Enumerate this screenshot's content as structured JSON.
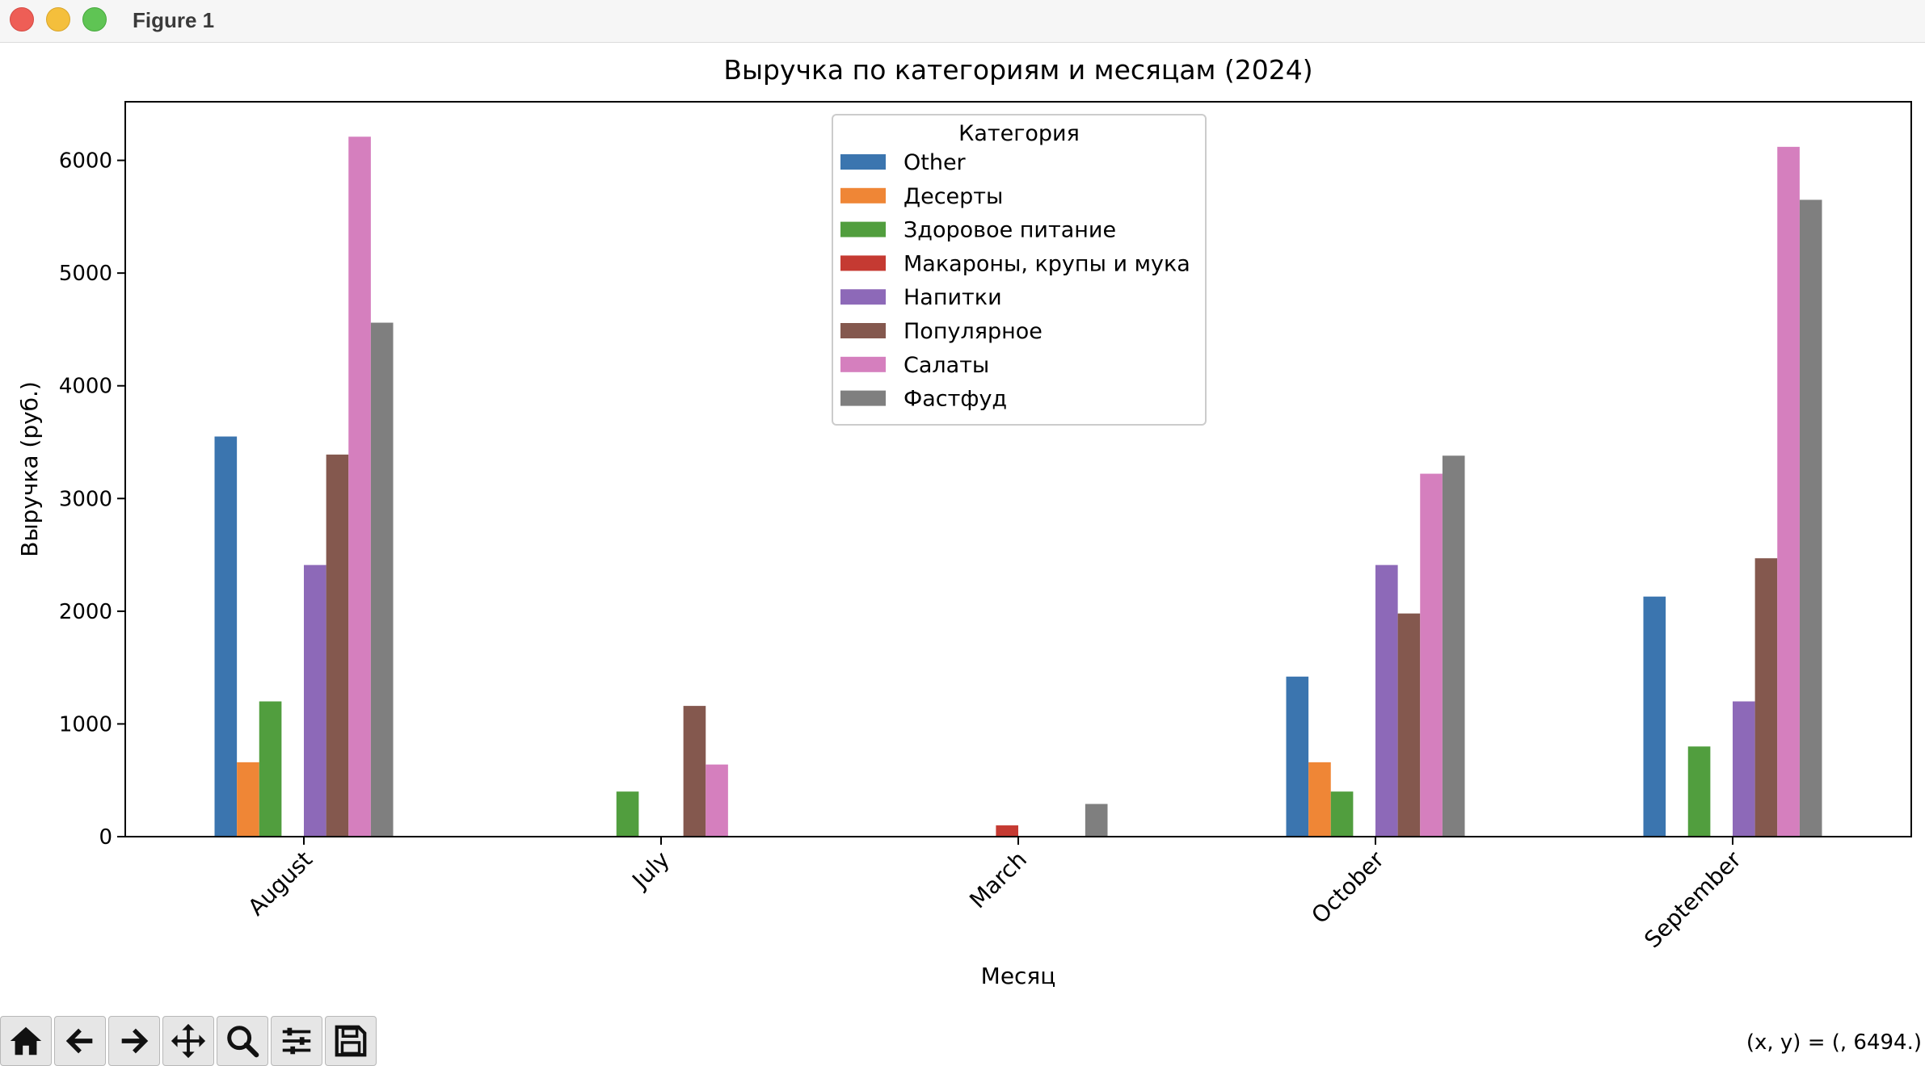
{
  "window": {
    "title": "Figure 1",
    "buttons": [
      "close",
      "minimize",
      "maximize"
    ]
  },
  "toolbar": {
    "buttons": [
      {
        "name": "home-icon",
        "label": "Home"
      },
      {
        "name": "back-arrow-icon",
        "label": "Back"
      },
      {
        "name": "forward-arrow-icon",
        "label": "Forward"
      },
      {
        "name": "pan-icon",
        "label": "Pan"
      },
      {
        "name": "zoom-icon",
        "label": "Zoom"
      },
      {
        "name": "configure-subplots-icon",
        "label": "Configure subplots"
      },
      {
        "name": "save-icon",
        "label": "Save"
      }
    ],
    "coords": "(x, y) = (, 6494.)"
  },
  "chart_data": {
    "type": "bar",
    "title": "Выручка по категориям и месяцам (2024)",
    "xlabel": "Месяц",
    "ylabel": "Выручка (руб.)",
    "categories": [
      "August",
      "July",
      "March",
      "October",
      "September"
    ],
    "ylim": [
      0,
      6520
    ],
    "yticks": [
      0,
      1000,
      2000,
      3000,
      4000,
      5000,
      6000
    ],
    "legend_title": "Категория",
    "legend_position": "top-center",
    "series": [
      {
        "name": "Other",
        "color": "#3b75af",
        "values": [
          3550,
          0,
          0,
          1420,
          2130
        ]
      },
      {
        "name": "Десерты",
        "color": "#ef8636",
        "values": [
          660,
          0,
          0,
          660,
          0
        ]
      },
      {
        "name": "Здоровое питание",
        "color": "#519e3e",
        "values": [
          1200,
          400,
          0,
          400,
          800
        ]
      },
      {
        "name": "Макароны, крупы и мука",
        "color": "#c53a32",
        "values": [
          0,
          0,
          100,
          0,
          0
        ]
      },
      {
        "name": "Напитки",
        "color": "#8d69b8",
        "values": [
          2410,
          0,
          0,
          2410,
          1200
        ]
      },
      {
        "name": "Популярное",
        "color": "#84584e",
        "values": [
          3390,
          1160,
          0,
          1980,
          2470
        ]
      },
      {
        "name": "Салаты",
        "color": "#d57fbe",
        "values": [
          6210,
          640,
          0,
          3220,
          6120
        ]
      },
      {
        "name": "Фастфуд",
        "color": "#7f7f7f",
        "values": [
          4560,
          0,
          290,
          3380,
          5650
        ]
      }
    ]
  }
}
